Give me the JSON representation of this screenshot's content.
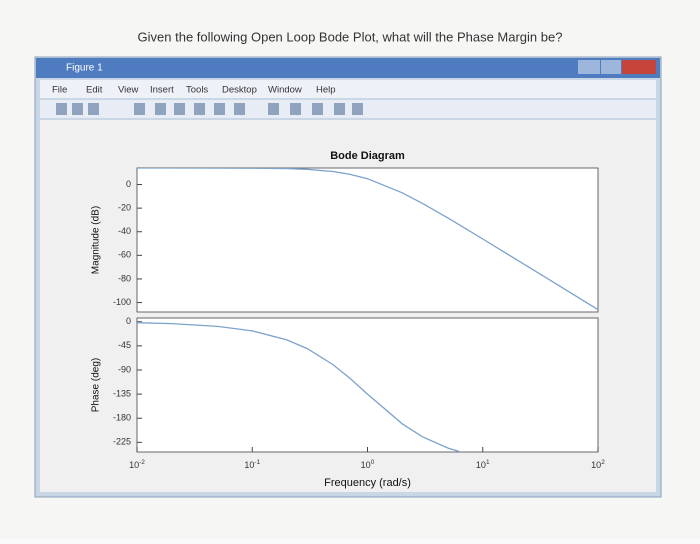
{
  "question": "Given the following Open Loop Bode Plot, what will the Phase Margin be?",
  "window": {
    "title": "Figure 1",
    "menu": [
      "File",
      "Edit",
      "View",
      "Insert",
      "Tools",
      "Desktop",
      "Window",
      "Help"
    ]
  },
  "chart_data": [
    {
      "type": "line",
      "title": "Bode Diagram",
      "ylabel": "Magnitude (dB)",
      "xscale": "log",
      "xlim": [
        0.01,
        100
      ],
      "ylim": [
        -108,
        14
      ],
      "yticks": [
        0,
        -20,
        -40,
        -60,
        -80,
        -100
      ],
      "color": "#7ba3cc",
      "x": [
        0.01,
        0.02,
        0.05,
        0.1,
        0.2,
        0.3,
        0.5,
        0.7,
        1,
        2,
        3,
        5,
        7,
        10,
        20,
        30,
        50,
        100
      ],
      "values": [
        13.98,
        13.97,
        13.95,
        13.85,
        13.47,
        12.86,
        11.07,
        8.78,
        4.95,
        -6.99,
        -16.02,
        -28.47,
        -36.99,
        -46.15,
        -64.1,
        -74.66,
        -87.96,
        -106.02
      ]
    },
    {
      "type": "line",
      "ylabel": "Phase (deg)",
      "xlabel": "Frequency (rad/s)",
      "xscale": "log",
      "xlim": [
        0.01,
        100
      ],
      "ylim": [
        -243,
        7
      ],
      "yticks": [
        0,
        -45,
        -90,
        -135,
        -180,
        -225
      ],
      "color": "#7ba3cc",
      "xticks": [
        {
          "value": 0.01,
          "label": "10",
          "exponent": "-2"
        },
        {
          "value": 0.1,
          "label": "10",
          "exponent": "-1"
        },
        {
          "value": 1,
          "label": "10",
          "exponent": "0"
        },
        {
          "value": 10,
          "label": "10",
          "exponent": "1"
        },
        {
          "value": 100,
          "label": "10",
          "exponent": "2"
        }
      ],
      "x": [
        0.01,
        0.02,
        0.05,
        0.1,
        0.2,
        0.3,
        0.5,
        0.7,
        1,
        2,
        3,
        5,
        7
      ],
      "values": [
        -1.72,
        -3.44,
        -8.58,
        -17.13,
        -33.93,
        -50.1,
        -79.7,
        -104.99,
        -135,
        -190.3,
        -214.7,
        -235.69,
        -245.49
      ]
    }
  ]
}
